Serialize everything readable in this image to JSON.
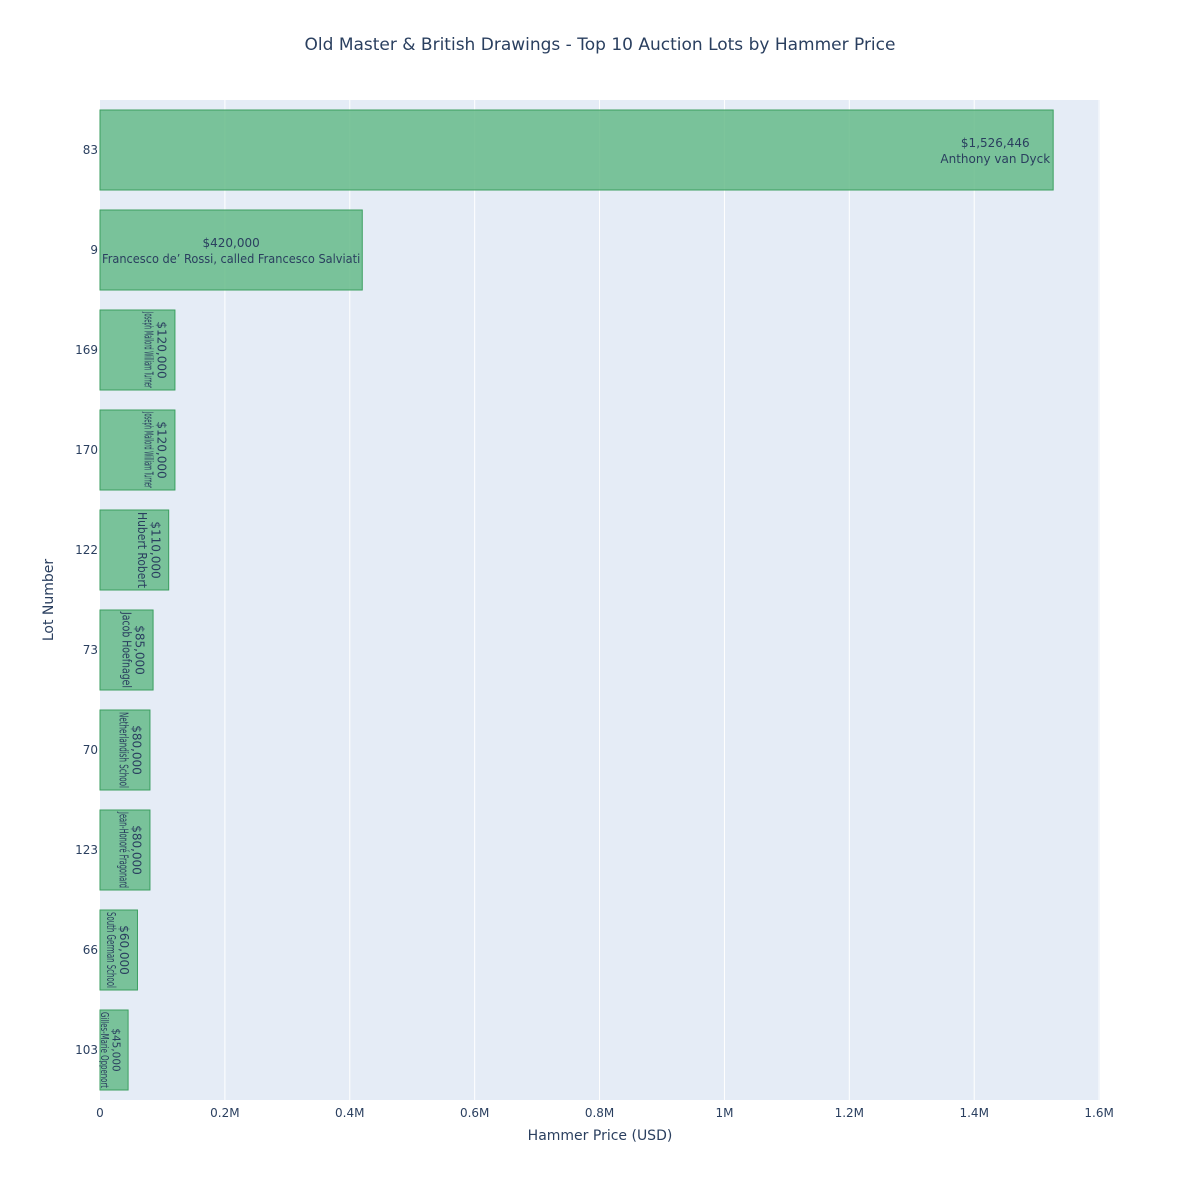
{
  "chart_data": {
    "type": "bar",
    "orientation": "horizontal",
    "title": "Old Master & British Drawings - Top 10 Auction Lots by Hammer Price",
    "xlabel": "Hammer Price (USD)",
    "ylabel": "Lot Number",
    "xlim": [
      0,
      1600000
    ],
    "x_ticks": [
      {
        "value": 0,
        "label": "0"
      },
      {
        "value": 200000,
        "label": "0.2M"
      },
      {
        "value": 400000,
        "label": "0.4M"
      },
      {
        "value": 600000,
        "label": "0.6M"
      },
      {
        "value": 800000,
        "label": "0.8M"
      },
      {
        "value": 1000000,
        "label": "1M"
      },
      {
        "value": 1200000,
        "label": "1.2M"
      },
      {
        "value": 1400000,
        "label": "1.4M"
      },
      {
        "value": 1600000,
        "label": "1.6M"
      }
    ],
    "grid": true,
    "colors": {
      "bar_fill": "#66bb8a",
      "bar_stroke": "#3a9e5f",
      "plot_bg": "#e5ecf6",
      "grid": "#ffffff",
      "text": "#2a3f5f"
    },
    "bars": [
      {
        "lot": "83",
        "value": 1526446,
        "price_label": "$1,526,446",
        "artist": "Anthony van Dyck"
      },
      {
        "lot": "9",
        "value": 420000,
        "price_label": "$420,000",
        "artist": "Francesco de’ Rossi, called Francesco Salviati"
      },
      {
        "lot": "169",
        "value": 120000,
        "price_label": "$120,000",
        "artist": "Joseph Mallord William Turner"
      },
      {
        "lot": "170",
        "value": 120000,
        "price_label": "$120,000",
        "artist": "Joseph Mallord William Turner"
      },
      {
        "lot": "122",
        "value": 110000,
        "price_label": "$110,000",
        "artist": "Hubert Robert"
      },
      {
        "lot": "73",
        "value": 85000,
        "price_label": "$85,000",
        "artist": "Jacob Hoefnagel"
      },
      {
        "lot": "70",
        "value": 80000,
        "price_label": "$80,000",
        "artist": "Netherlandish School"
      },
      {
        "lot": "123",
        "value": 80000,
        "price_label": "$80,000",
        "artist": "Jean-Honoré Fragonard"
      },
      {
        "lot": "66",
        "value": 60000,
        "price_label": "$60,000",
        "artist": "South German School"
      },
      {
        "lot": "103",
        "value": 45000,
        "price_label": "$45,000",
        "artist": "Gilles-Marie Oppenort"
      }
    ]
  }
}
